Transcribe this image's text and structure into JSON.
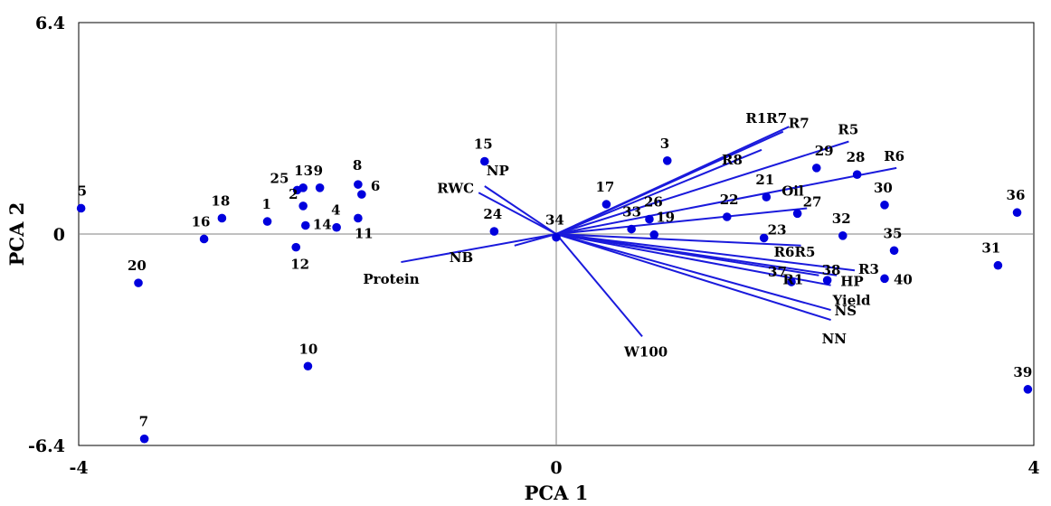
{
  "chart_data": {
    "type": "scatter",
    "title": "",
    "xlabel": "PCA 1",
    "ylabel": "PCA 2",
    "xlim": [
      -4,
      4
    ],
    "ylim": [
      -6.4,
      6.4
    ],
    "x_ticks": [
      "-4",
      "0",
      "4"
    ],
    "y_ticks": [
      "6.4",
      "0",
      "-6.4"
    ],
    "grid": false,
    "colors": {
      "marker": "#0000dd",
      "vector": "#1a1adc",
      "zero_line": "#808080",
      "frame": "#000000"
    },
    "points": [
      {
        "label": "1",
        "x": -2.42,
        "y": 0.38
      },
      {
        "label": "2",
        "x": -2.12,
        "y": 0.85
      },
      {
        "label": "3",
        "x": 0.93,
        "y": 2.22
      },
      {
        "label": "4",
        "x": -1.84,
        "y": 0.2
      },
      {
        "label": "5",
        "x": -3.98,
        "y": 0.78
      },
      {
        "label": "6",
        "x": -1.63,
        "y": 1.2
      },
      {
        "label": "7",
        "x": -3.45,
        "y": -6.2
      },
      {
        "label": "8",
        "x": -1.66,
        "y": 1.5
      },
      {
        "label": "9",
        "x": -1.98,
        "y": 1.4
      },
      {
        "label": "10",
        "x": -2.08,
        "y": -4.0
      },
      {
        "label": "11",
        "x": -1.66,
        "y": 0.48
      },
      {
        "label": "12",
        "x": -2.18,
        "y": -0.4
      },
      {
        "label": "13",
        "x": -2.12,
        "y": 1.4
      },
      {
        "label": "14",
        "x": -2.1,
        "y": 0.26
      },
      {
        "label": "15",
        "x": -0.6,
        "y": 2.2
      },
      {
        "label": "16",
        "x": -2.95,
        "y": -0.15
      },
      {
        "label": "17",
        "x": 0.42,
        "y": 0.9
      },
      {
        "label": "18",
        "x": -2.8,
        "y": 0.48
      },
      {
        "label": "19",
        "x": 0.82,
        "y": -0.02
      },
      {
        "label": "20",
        "x": -3.5,
        "y": -1.48
      },
      {
        "label": "21",
        "x": 1.76,
        "y": 1.12
      },
      {
        "label": "22",
        "x": 1.43,
        "y": 0.52
      },
      {
        "label": "23",
        "x": 1.74,
        "y": -0.12
      },
      {
        "label": "24",
        "x": -0.52,
        "y": 0.08
      },
      {
        "label": "25",
        "x": -2.17,
        "y": 1.33
      },
      {
        "label": "26",
        "x": 0.78,
        "y": 0.45
      },
      {
        "label": "27",
        "x": 2.02,
        "y": 0.62
      },
      {
        "label": "28",
        "x": 2.52,
        "y": 1.8
      },
      {
        "label": "29",
        "x": 2.18,
        "y": 2.0
      },
      {
        "label": "30",
        "x": 2.75,
        "y": 0.88
      },
      {
        "label": "31",
        "x": 3.7,
        "y": -0.95
      },
      {
        "label": "32",
        "x": 2.4,
        "y": -0.05
      },
      {
        "label": "33",
        "x": 0.63,
        "y": 0.15
      },
      {
        "label": "34",
        "x": 0.0,
        "y": -0.1
      },
      {
        "label": "35",
        "x": 2.83,
        "y": -0.5
      },
      {
        "label": "36",
        "x": 3.86,
        "y": 0.65
      },
      {
        "label": "37",
        "x": 1.97,
        "y": -1.45
      },
      {
        "label": "38",
        "x": 2.27,
        "y": -1.4
      },
      {
        "label": "39",
        "x": 3.95,
        "y": -4.7
      },
      {
        "label": "40",
        "x": 2.75,
        "y": -1.35
      }
    ],
    "vectors": [
      {
        "label": "R1R7",
        "x": 1.95,
        "y": 3.25
      },
      {
        "label": "R7",
        "x": 1.9,
        "y": 3.1
      },
      {
        "label": "R8",
        "x": 1.72,
        "y": 2.55
      },
      {
        "label": "R5",
        "x": 2.45,
        "y": 2.8
      },
      {
        "label": "R6",
        "x": 2.85,
        "y": 2.0
      },
      {
        "label": "Oil",
        "x": 2.1,
        "y": 0.78
      },
      {
        "label": "R6R5",
        "x": 2.05,
        "y": -0.35
      },
      {
        "label": "R3",
        "x": 2.5,
        "y": -1.1
      },
      {
        "label": "HP",
        "x": 2.35,
        "y": -1.25
      },
      {
        "label": "R1",
        "x": 2.2,
        "y": -1.25
      },
      {
        "label": "Yield",
        "x": 2.3,
        "y": -1.55
      },
      {
        "label": "NS",
        "x": 2.3,
        "y": -2.3
      },
      {
        "label": "NN",
        "x": 2.3,
        "y": -2.6
      },
      {
        "label": "W100",
        "x": 0.72,
        "y": -3.1
      },
      {
        "label": "NB",
        "x": -0.35,
        "y": -0.35
      },
      {
        "label": "Protein",
        "x": -1.3,
        "y": -0.85
      },
      {
        "label": "RWC",
        "x": -0.65,
        "y": 1.25
      },
      {
        "label": "NP",
        "x": -0.6,
        "y": 1.45
      }
    ]
  }
}
